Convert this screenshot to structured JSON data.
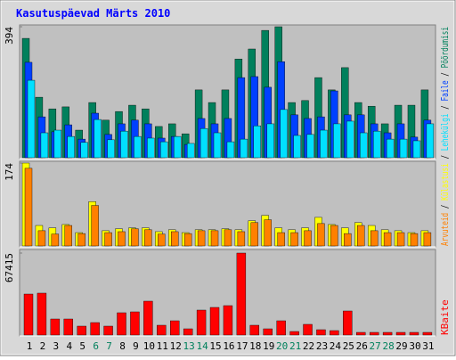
{
  "title": "Kasutuspäevad Märts 2010",
  "legend_separator": "/",
  "chart_data": [
    {
      "type": "bar",
      "ylim": [
        0,
        394
      ],
      "yticks": [
        394
      ],
      "series": [
        {
          "name": "Pöördumisi",
          "color": "#00805c",
          "values": [
            359,
            182,
            147,
            153,
            83,
            166,
            113,
            139,
            158,
            147,
            94,
            102,
            72,
            204,
            166,
            204,
            297,
            327,
            383,
            394,
            166,
            172,
            241,
            204,
            271,
            166,
            155,
            102,
            158,
            158,
            204
          ]
        },
        {
          "name": "Faile",
          "color": "#0040ff",
          "values": [
            287,
            123,
            78,
            99,
            56,
            134,
            70,
            102,
            113,
            102,
            59,
            64,
            40,
            118,
            102,
            118,
            241,
            244,
            212,
            289,
            129,
            118,
            123,
            201,
            129,
            129,
            102,
            75,
            102,
            62,
            113
          ]
        },
        {
          "name": "Lehekülgi",
          "color": "#00e0ff",
          "values": [
            233,
            75,
            83,
            64,
            46,
            115,
            54,
            80,
            64,
            59,
            48,
            64,
            43,
            88,
            75,
            48,
            56,
            96,
            102,
            145,
            67,
            70,
            83,
            102,
            110,
            75,
            80,
            56,
            56,
            51,
            102
          ]
        }
      ]
    },
    {
      "type": "bar",
      "ylim": [
        0,
        174
      ],
      "yticks": [
        174
      ],
      "series": [
        {
          "name": "Külastusi",
          "color": "#ffff00",
          "values": [
            174,
            43,
            38,
            45,
            28,
            93,
            32,
            36,
            38,
            38,
            30,
            34,
            28,
            34,
            34,
            36,
            34,
            53,
            64,
            38,
            34,
            38,
            60,
            45,
            38,
            49,
            43,
            34,
            32,
            28,
            32
          ]
        },
        {
          "name": "Arvuteid",
          "color": "#ff8000",
          "values": [
            163,
            32,
            25,
            43,
            26,
            85,
            28,
            30,
            36,
            34,
            25,
            30,
            26,
            32,
            32,
            34,
            30,
            49,
            55,
            28,
            28,
            32,
            47,
            43,
            26,
            43,
            32,
            28,
            28,
            26,
            28
          ]
        }
      ]
    },
    {
      "type": "bar",
      "ylim": [
        0,
        67415
      ],
      "yticks": [
        67415
      ],
      "categories": [
        "1",
        "2",
        "3",
        "4",
        "5",
        "6",
        "7",
        "8",
        "9",
        "10",
        "11",
        "12",
        "13",
        "14",
        "15",
        "16",
        "17",
        "18",
        "19",
        "20",
        "21",
        "22",
        "23",
        "24",
        "25",
        "26",
        "27",
        "28",
        "29",
        "30",
        "31"
      ],
      "highlighted": [
        "6",
        "7",
        "13",
        "14",
        "20",
        "21",
        "27",
        "28"
      ],
      "highlight_color": "#00805c",
      "series": [
        {
          "name": "KBaite",
          "color": "#ff0000",
          "values": [
            33700,
            34450,
            13190,
            13190,
            7330,
            10260,
            7330,
            18330,
            19060,
            27850,
            8060,
            11730,
            5130,
            20520,
            22720,
            24190,
            67415,
            8060,
            5130,
            11730,
            2930,
            8800,
            4400,
            3670,
            19790,
            2200,
            2200,
            2200,
            2200,
            2200,
            2200
          ]
        }
      ]
    }
  ]
}
